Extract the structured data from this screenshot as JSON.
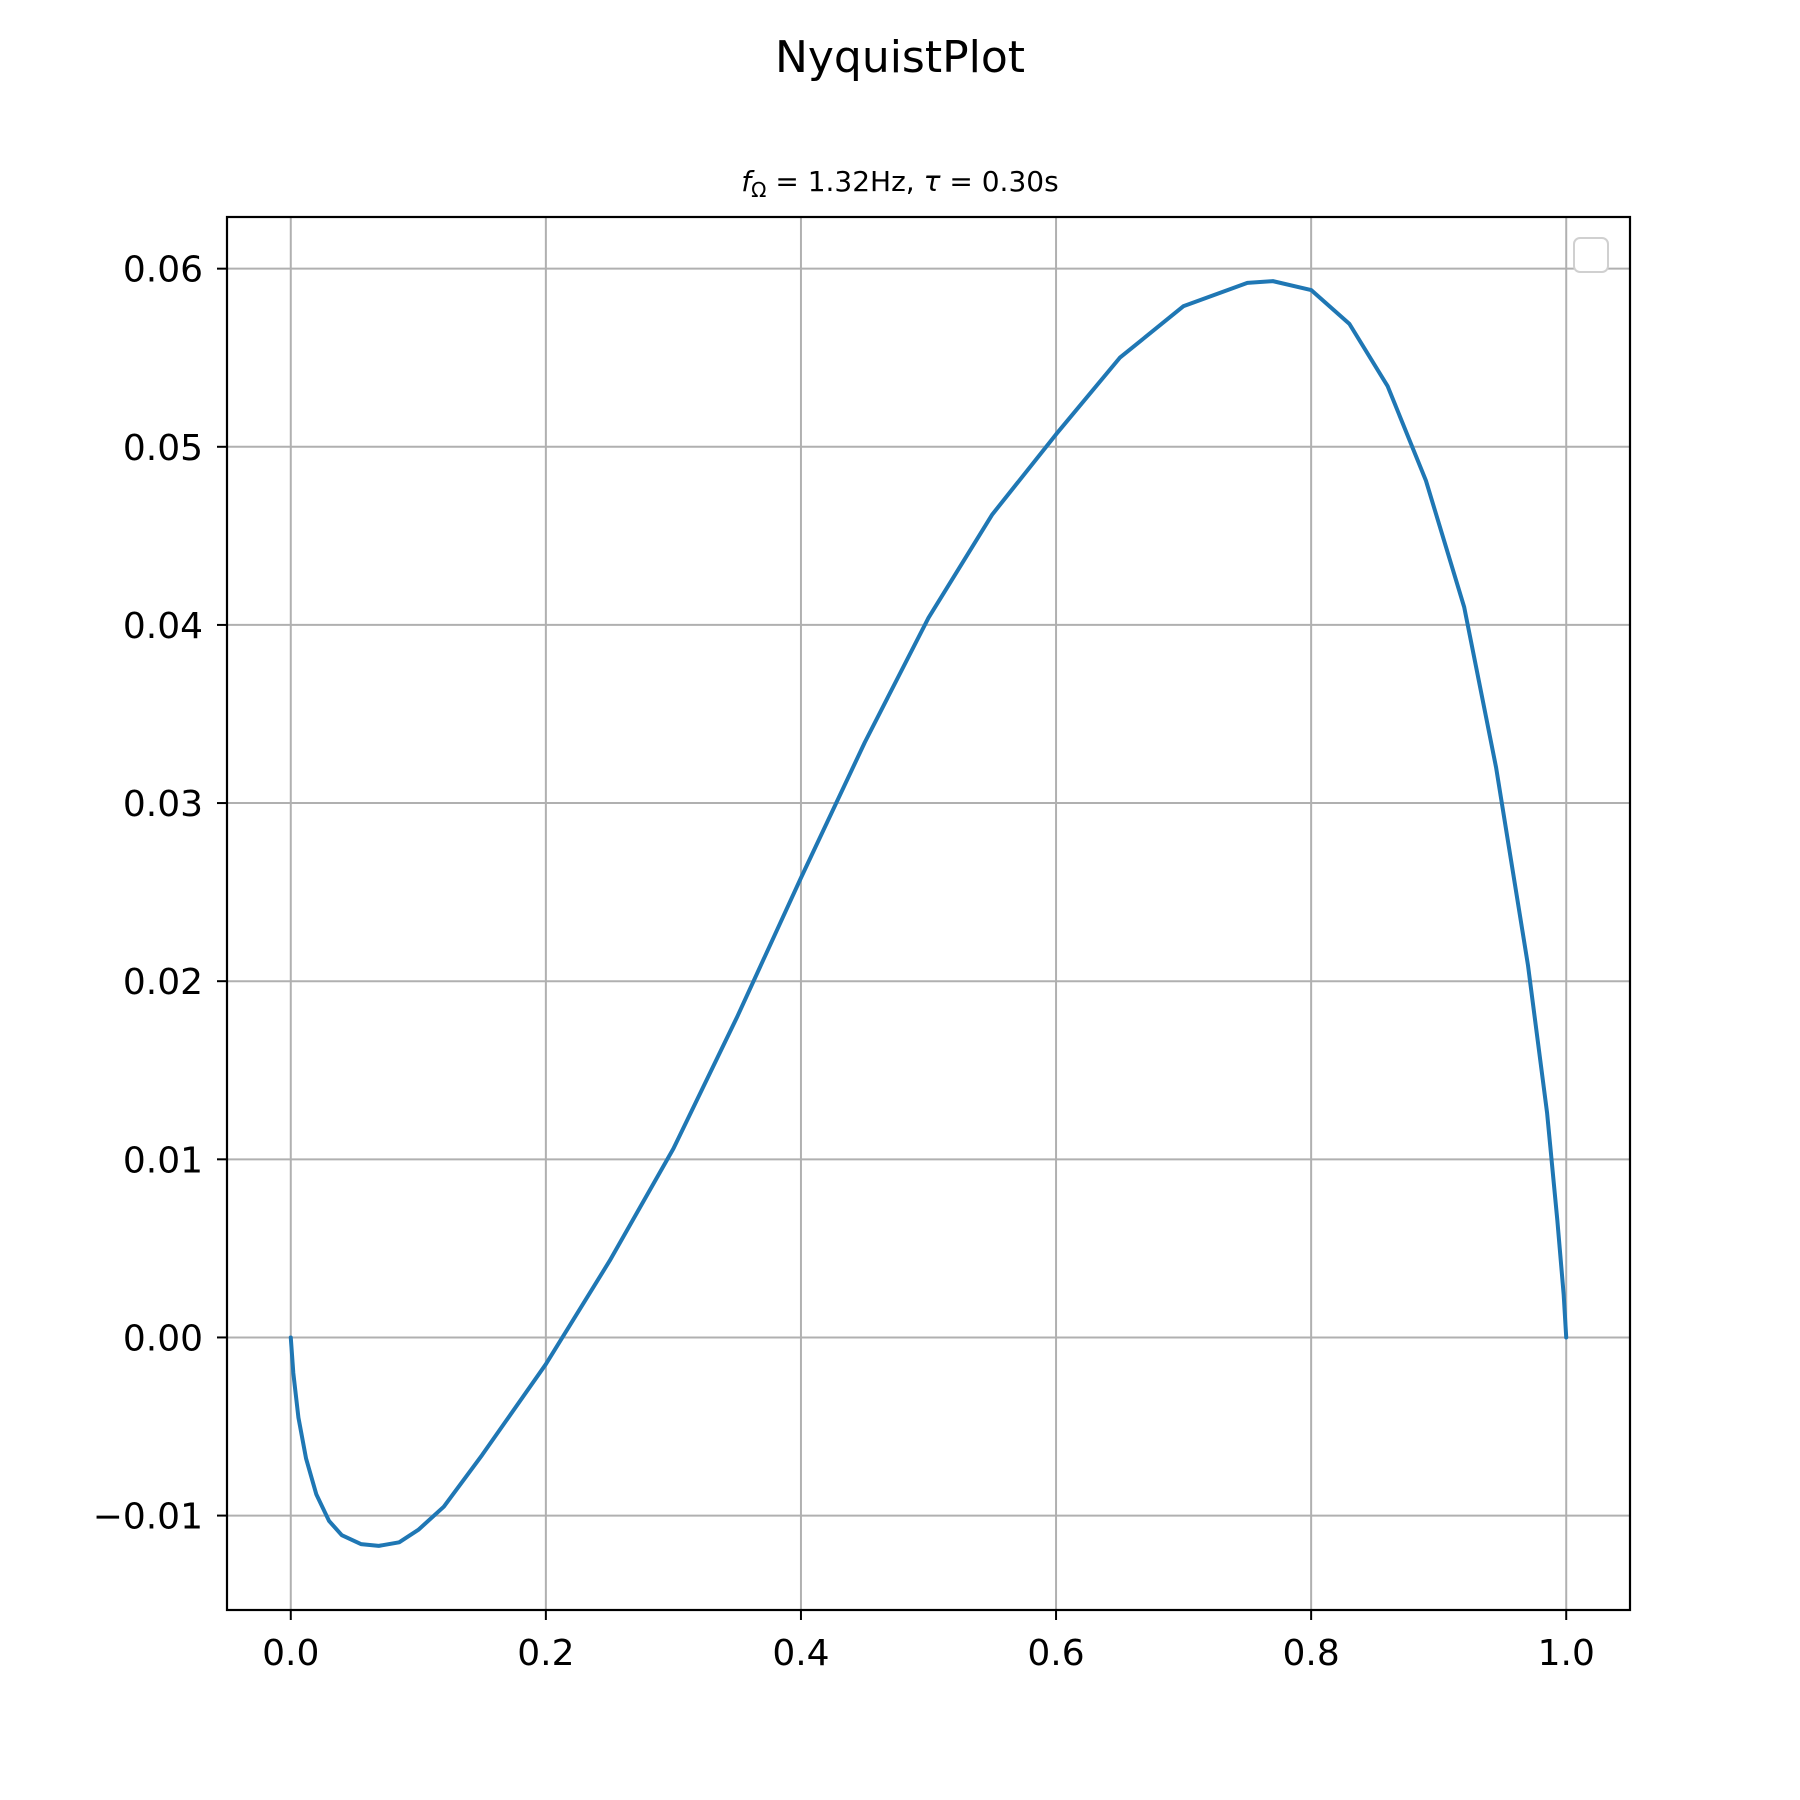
{
  "chart_data": {
    "type": "line",
    "title": "NyquistPlot",
    "subtitle": {
      "f_symbol": "f",
      "f_subscript": "Ω",
      "f_value": " = 1.32Hz, ",
      "tau_symbol": "τ",
      "tau_value": " = 0.30s"
    },
    "xlabel": "",
    "ylabel": "",
    "xlim": [
      -0.05,
      1.05
    ],
    "ylim": [
      -0.0153,
      0.0629
    ],
    "grid": true,
    "legend": {
      "placement": "top-right",
      "entries": []
    },
    "x_ticks": [
      0.0,
      0.2,
      0.4,
      0.6,
      0.8,
      1.0
    ],
    "x_tick_labels": [
      "0.0",
      "0.2",
      "0.4",
      "0.6",
      "0.8",
      "1.0"
    ],
    "y_ticks": [
      -0.01,
      0.0,
      0.01,
      0.02,
      0.03,
      0.04,
      0.05,
      0.06
    ],
    "y_tick_labels": [
      "−0.01",
      "0.00",
      "0.01",
      "0.02",
      "0.03",
      "0.04",
      "0.05",
      "0.06"
    ],
    "colors": {
      "series": "#1f77b4",
      "grid": "#b0b0b0"
    },
    "series": [
      {
        "x": [
          0.0,
          0.002,
          0.006,
          0.012,
          0.02,
          0.03,
          0.04,
          0.055,
          0.069,
          0.085,
          0.1,
          0.12,
          0.15,
          0.2,
          0.25,
          0.3,
          0.35,
          0.4,
          0.45,
          0.5,
          0.55,
          0.6,
          0.65,
          0.7,
          0.75,
          0.77,
          0.8,
          0.83,
          0.86,
          0.89,
          0.92,
          0.945,
          0.97,
          0.985,
          0.993,
          0.998,
          1.0
        ],
        "y": [
          0.0,
          -0.002,
          -0.0045,
          -0.0068,
          -0.0088,
          -0.0103,
          -0.0111,
          -0.0116,
          -0.0117,
          -0.0115,
          -0.0108,
          -0.0095,
          -0.0066,
          -0.0015,
          0.0043,
          0.0106,
          0.018,
          0.0258,
          0.0334,
          0.0404,
          0.0462,
          0.0507,
          0.055,
          0.0579,
          0.0592,
          0.0593,
          0.0588,
          0.0569,
          0.0534,
          0.0481,
          0.041,
          0.032,
          0.0209,
          0.0126,
          0.0066,
          0.0024,
          0.0
        ]
      }
    ]
  }
}
